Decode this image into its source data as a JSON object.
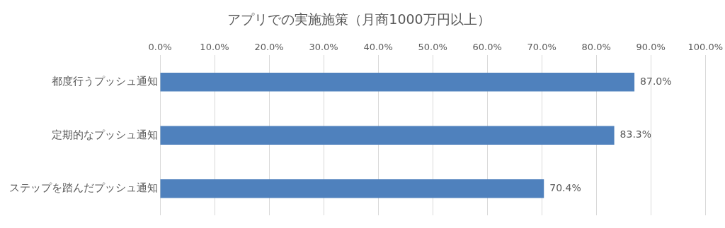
{
  "chart_data": {
    "type": "bar",
    "orientation": "horizontal",
    "title": "アプリでの実施施策（月商1000万円以上）",
    "categories": [
      "都度行うプッシュ通知",
      "定期的なプッシュ通知",
      "ステップを踏んだプッシュ通知"
    ],
    "values": [
      87.0,
      83.3,
      70.4
    ],
    "value_labels": [
      "87.0%",
      "83.3%",
      "70.4%"
    ],
    "color": "#4f81bd",
    "xlim": [
      0,
      100
    ],
    "xticks": [
      {
        "value": 0,
        "label": "0.0%"
      },
      {
        "value": 10,
        "label": "10.0%"
      },
      {
        "value": 20,
        "label": "20.0%"
      },
      {
        "value": 30,
        "label": "30.0%"
      },
      {
        "value": 40,
        "label": "40.0%"
      },
      {
        "value": 50,
        "label": "50.0%"
      },
      {
        "value": 60,
        "label": "60.0%"
      },
      {
        "value": 70,
        "label": "70.0%"
      },
      {
        "value": 80,
        "label": "80.0%"
      },
      {
        "value": 90,
        "label": "90.0%"
      },
      {
        "value": 100,
        "label": "100.0%"
      }
    ],
    "grid": "x",
    "legend": false
  }
}
